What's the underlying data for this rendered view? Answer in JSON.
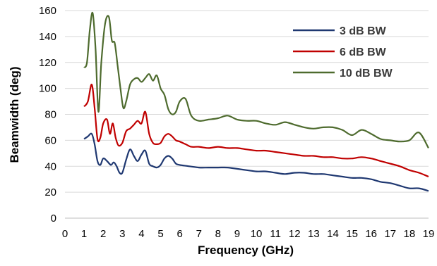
{
  "chart_data": {
    "type": "line",
    "title": "",
    "xlabel": "Frequency  (GHz)",
    "ylabel": "Beamwidth  (deg)",
    "xlim": [
      0,
      19
    ],
    "ylim": [
      0,
      160
    ],
    "xticks": [
      0,
      1,
      2,
      3,
      4,
      5,
      6,
      7,
      8,
      9,
      10,
      11,
      12,
      13,
      14,
      15,
      16,
      17,
      18,
      19
    ],
    "yticks": [
      0,
      20,
      40,
      60,
      80,
      100,
      120,
      140,
      160
    ],
    "grid": "horizontal",
    "legend_position": "top-right",
    "series": [
      {
        "name": "3 dB BW",
        "color": "#1f3871",
        "x": [
          1.0,
          1.2,
          1.4,
          1.55,
          1.7,
          1.85,
          2.0,
          2.2,
          2.4,
          2.55,
          2.7,
          2.85,
          3.0,
          3.2,
          3.4,
          3.6,
          3.8,
          4.0,
          4.2,
          4.4,
          4.6,
          4.8,
          5.0,
          5.2,
          5.4,
          5.6,
          5.8,
          6.0,
          6.5,
          7.0,
          7.5,
          8.0,
          8.5,
          9.0,
          9.5,
          10.0,
          10.5,
          11.0,
          11.5,
          12.0,
          12.5,
          13.0,
          13.5,
          14.0,
          14.5,
          15.0,
          15.5,
          16.0,
          16.5,
          17.0,
          17.5,
          18.0,
          18.5,
          19.0
        ],
        "values": [
          61,
          63,
          65,
          57,
          44,
          41,
          46,
          44,
          41,
          43,
          40,
          35,
          35,
          45,
          53,
          48,
          44,
          49,
          52,
          42,
          40,
          39,
          41,
          46,
          48,
          46,
          42,
          41,
          40,
          39,
          39,
          39,
          39,
          38,
          37,
          36,
          36,
          35,
          34,
          35,
          35,
          34,
          34,
          33,
          32,
          31,
          31,
          30,
          28,
          27,
          25,
          23,
          23,
          21
        ]
      },
      {
        "name": "6 dB BW",
        "color": "#c00000",
        "x": [
          1.0,
          1.2,
          1.4,
          1.55,
          1.7,
          1.85,
          2.0,
          2.2,
          2.35,
          2.5,
          2.65,
          2.8,
          3.0,
          3.2,
          3.4,
          3.6,
          3.8,
          4.0,
          4.2,
          4.4,
          4.6,
          4.8,
          5.0,
          5.2,
          5.4,
          5.6,
          5.8,
          6.0,
          6.3,
          6.6,
          7.0,
          7.5,
          8.0,
          8.5,
          9.0,
          9.5,
          10.0,
          10.5,
          11.0,
          11.5,
          12.0,
          12.5,
          13.0,
          13.5,
          14.0,
          14.5,
          15.0,
          15.5,
          16.0,
          16.5,
          17.0,
          17.5,
          18.0,
          18.5,
          19.0
        ],
        "values": [
          86,
          90,
          103,
          85,
          61,
          62,
          73,
          76,
          65,
          73,
          62,
          56,
          58,
          67,
          69,
          72,
          75,
          73,
          82,
          65,
          58,
          57,
          58,
          63,
          65,
          63,
          60,
          59,
          57,
          55,
          55,
          54,
          55,
          54,
          54,
          53,
          52,
          52,
          51,
          50,
          49,
          48,
          48,
          47,
          47,
          46,
          46,
          47,
          46,
          44,
          42,
          40,
          37,
          35,
          32
        ]
      },
      {
        "name": "10 dB BW",
        "color": "#4e6b2e",
        "x": [
          1.0,
          1.15,
          1.3,
          1.45,
          1.6,
          1.75,
          1.9,
          2.1,
          2.3,
          2.45,
          2.6,
          2.75,
          2.9,
          3.05,
          3.2,
          3.4,
          3.6,
          3.8,
          4.0,
          4.2,
          4.4,
          4.6,
          4.8,
          5.0,
          5.2,
          5.4,
          5.6,
          5.8,
          6.0,
          6.3,
          6.6,
          7.0,
          7.5,
          8.0,
          8.5,
          9.0,
          9.5,
          10.0,
          10.5,
          11.0,
          11.5,
          12.0,
          12.5,
          13.0,
          13.5,
          14.0,
          14.5,
          15.0,
          15.5,
          16.0,
          16.5,
          17.0,
          17.5,
          18.0,
          18.5,
          19.0
        ],
        "values": [
          116,
          120,
          145,
          158,
          130,
          82,
          120,
          150,
          155,
          137,
          135,
          118,
          100,
          85,
          90,
          103,
          107,
          108,
          105,
          108,
          111,
          106,
          110,
          100,
          95,
          84,
          80,
          82,
          90,
          92,
          79,
          75,
          76,
          77,
          79,
          76,
          75,
          75,
          73,
          72,
          74,
          72,
          70,
          69,
          70,
          70,
          68,
          64,
          68,
          65,
          61,
          60,
          59,
          60,
          66,
          54
        ]
      }
    ]
  }
}
